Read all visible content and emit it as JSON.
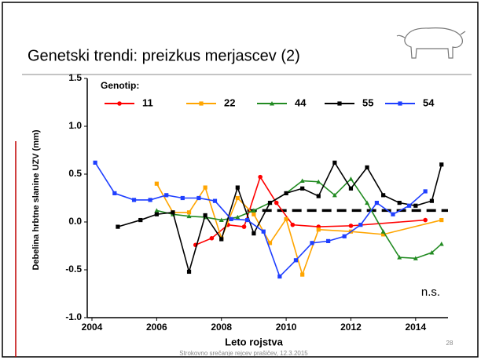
{
  "slide": {
    "title": "Genetski trendi: preizkus merjascev (2)",
    "footer": "Strokovno srečanje rejcev prašičev, 12.3.2015",
    "page": 28
  },
  "chart_data": {
    "type": "line",
    "xlabel": "Leto rojstva",
    "ylabel": "Debelina hrbtne slanine UZV (mm)",
    "legend_title": "Genotip:",
    "annotation": "n.s.",
    "xlim": [
      2004,
      2015
    ],
    "xticks": [
      2004,
      2006,
      2008,
      2010,
      2012,
      2014
    ],
    "ylim": [
      -1.0,
      1.5
    ],
    "yticks": [
      {
        "value": -1.0,
        "label": "-1.0"
      },
      {
        "value": -0.5,
        "label": "-0.5"
      },
      {
        "value": 0.0,
        "label": "0.0"
      },
      {
        "value": 0.5,
        "label": "0.5"
      },
      {
        "value": 1.0,
        "label": "1.0"
      },
      {
        "value": 1.5,
        "label": "1.5"
      }
    ],
    "reference_line": {
      "y": 0.12,
      "x": [
        2008.8,
        2015
      ]
    },
    "series": [
      {
        "name": "11",
        "color": "#ff0000",
        "marker": "circle",
        "x": [
          2007.2,
          2007.7,
          2008.2,
          2008.7,
          2009.2,
          2009.7,
          2010.2,
          2011.0,
          2012.0,
          2014.3
        ],
        "values": [
          -0.24,
          -0.17,
          -0.03,
          -0.05,
          0.47,
          0.2,
          -0.03,
          -0.05,
          -0.04,
          0.02
        ]
      },
      {
        "name": "22",
        "color": "#ffa500",
        "marker": "square",
        "x": [
          2006.0,
          2006.5,
          2007.0,
          2007.5,
          2008.0,
          2008.5,
          2009.0,
          2009.5,
          2010.0,
          2010.5,
          2011.0,
          2012.0,
          2013.0,
          2014.8
        ],
        "values": [
          0.4,
          0.1,
          0.1,
          0.36,
          -0.17,
          0.25,
          0.08,
          -0.22,
          0.03,
          -0.55,
          -0.08,
          -0.1,
          -0.13,
          0.02
        ]
      },
      {
        "name": "44",
        "color": "#228b22",
        "marker": "triangle",
        "x": [
          2006.0,
          2006.5,
          2007.0,
          2007.5,
          2008.0,
          2008.5,
          2009.0,
          2009.5,
          2010.0,
          2010.5,
          2011.0,
          2011.5,
          2012.0,
          2012.5,
          2013.0,
          2013.5,
          2014.0,
          2014.5,
          2014.8
        ],
        "values": [
          0.12,
          0.08,
          0.06,
          0.05,
          0.02,
          0.05,
          0.12,
          0.2,
          0.3,
          0.43,
          0.42,
          0.28,
          0.45,
          0.2,
          -0.1,
          -0.37,
          -0.38,
          -0.32,
          -0.23
        ]
      },
      {
        "name": "55",
        "color": "#000000",
        "marker": "square",
        "x": [
          2004.8,
          2005.5,
          2006.0,
          2006.5,
          2007.0,
          2007.5,
          2008.0,
          2008.5,
          2009.0,
          2009.5,
          2010.0,
          2010.5,
          2011.0,
          2011.5,
          2012.0,
          2012.5,
          2013.0,
          2013.5,
          2014.0,
          2014.5,
          2014.8
        ],
        "values": [
          -0.05,
          0.02,
          0.08,
          0.1,
          -0.52,
          0.07,
          -0.18,
          0.36,
          -0.12,
          0.2,
          0.3,
          0.35,
          0.27,
          0.62,
          0.35,
          0.57,
          0.28,
          0.2,
          0.17,
          0.22,
          0.6
        ]
      },
      {
        "name": "54",
        "color": "#1f3fff",
        "marker": "square",
        "x": [
          2004.1,
          2004.7,
          2005.3,
          2005.8,
          2006.3,
          2006.8,
          2007.3,
          2007.8,
          2008.3,
          2008.8,
          2009.3,
          2009.8,
          2010.3,
          2010.8,
          2011.3,
          2011.8,
          2012.3,
          2012.8,
          2013.3,
          2013.8,
          2014.3
        ],
        "values": [
          0.62,
          0.3,
          0.23,
          0.23,
          0.28,
          0.25,
          0.25,
          0.22,
          0.03,
          0.02,
          -0.1,
          -0.57,
          -0.4,
          -0.22,
          -0.2,
          -0.15,
          -0.03,
          0.2,
          0.08,
          0.17,
          0.32
        ]
      }
    ]
  }
}
